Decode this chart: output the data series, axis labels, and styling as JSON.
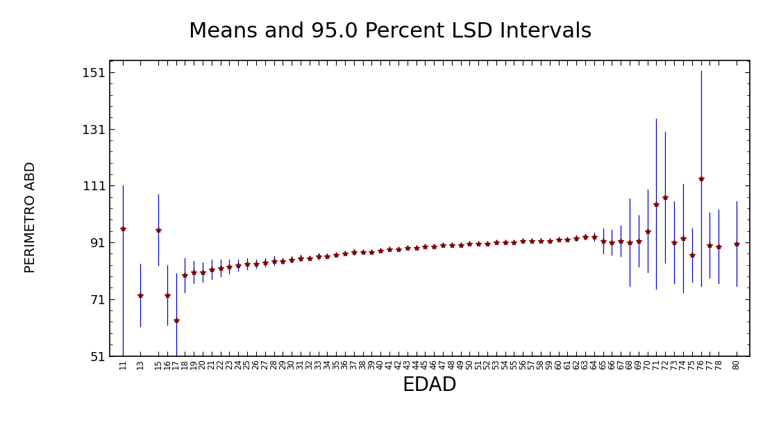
{
  "title": "Means and 95.0 Percent LSD Intervals",
  "xlabel": "EDAD",
  "ylabel": "PERIMETRO ABD",
  "ylim": [
    51,
    155
  ],
  "yticks": [
    51,
    71,
    91,
    111,
    131,
    151
  ],
  "background_color": "#ffffff",
  "line_color": "#0000cc",
  "marker_color": "#800000",
  "ages": [
    11,
    13,
    15,
    16,
    17,
    18,
    19,
    20,
    21,
    22,
    23,
    24,
    25,
    26,
    27,
    28,
    29,
    30,
    31,
    32,
    33,
    34,
    35,
    36,
    37,
    38,
    39,
    40,
    41,
    42,
    43,
    44,
    45,
    46,
    47,
    48,
    49,
    50,
    51,
    52,
    53,
    54,
    55,
    56,
    57,
    58,
    59,
    60,
    61,
    62,
    63,
    64,
    65,
    66,
    67,
    68,
    69,
    70,
    71,
    72,
    73,
    74,
    75,
    76,
    77,
    78,
    80
  ],
  "means": [
    96.0,
    72.5,
    95.5,
    72.5,
    63.5,
    79.5,
    80.5,
    80.5,
    81.5,
    82.0,
    82.5,
    83.0,
    83.5,
    83.5,
    84.0,
    84.5,
    84.5,
    85.0,
    85.5,
    85.5,
    86.0,
    86.0,
    86.5,
    87.0,
    87.5,
    87.5,
    87.5,
    88.0,
    88.5,
    88.5,
    89.0,
    89.0,
    89.5,
    89.5,
    90.0,
    90.0,
    90.0,
    90.5,
    90.5,
    90.5,
    91.0,
    91.0,
    91.0,
    91.5,
    91.5,
    91.5,
    91.5,
    92.0,
    92.0,
    92.5,
    93.0,
    93.0,
    91.5,
    91.0,
    91.5,
    91.0,
    91.5,
    95.0,
    104.5,
    107.0,
    91.0,
    92.5,
    86.5,
    113.5,
    90.0,
    89.5,
    90.5
  ],
  "lower": [
    51.0,
    61.5,
    83.0,
    62.0,
    47.0,
    73.5,
    76.5,
    77.0,
    78.0,
    79.0,
    80.0,
    81.0,
    81.5,
    82.0,
    82.5,
    83.0,
    83.5,
    84.0,
    84.5,
    85.0,
    85.0,
    85.5,
    86.0,
    86.5,
    86.5,
    87.0,
    87.0,
    87.5,
    88.0,
    88.0,
    88.5,
    88.5,
    89.0,
    89.0,
    89.5,
    89.5,
    89.5,
    90.0,
    90.0,
    90.0,
    90.5,
    90.5,
    90.5,
    91.0,
    91.0,
    91.0,
    91.0,
    91.5,
    91.5,
    91.5,
    92.0,
    91.5,
    87.0,
    86.5,
    86.0,
    75.5,
    82.5,
    80.5,
    74.5,
    84.0,
    76.5,
    73.5,
    77.0,
    75.5,
    78.5,
    76.5,
    75.5
  ],
  "upper": [
    111.0,
    83.5,
    108.0,
    83.0,
    80.0,
    85.5,
    84.5,
    84.0,
    85.0,
    85.0,
    85.0,
    85.0,
    85.5,
    85.0,
    85.5,
    86.0,
    85.5,
    86.0,
    86.5,
    86.0,
    87.0,
    86.5,
    87.0,
    87.5,
    88.5,
    88.0,
    88.0,
    88.5,
    89.0,
    89.0,
    89.5,
    89.5,
    90.0,
    90.0,
    90.5,
    90.5,
    90.5,
    91.0,
    91.0,
    91.0,
    91.5,
    91.5,
    91.5,
    92.0,
    92.0,
    92.0,
    92.0,
    92.5,
    92.5,
    93.5,
    94.0,
    94.5,
    96.0,
    95.5,
    97.0,
    106.5,
    100.5,
    109.5,
    134.5,
    130.0,
    105.5,
    111.5,
    96.0,
    151.5,
    101.5,
    102.5,
    105.5
  ]
}
